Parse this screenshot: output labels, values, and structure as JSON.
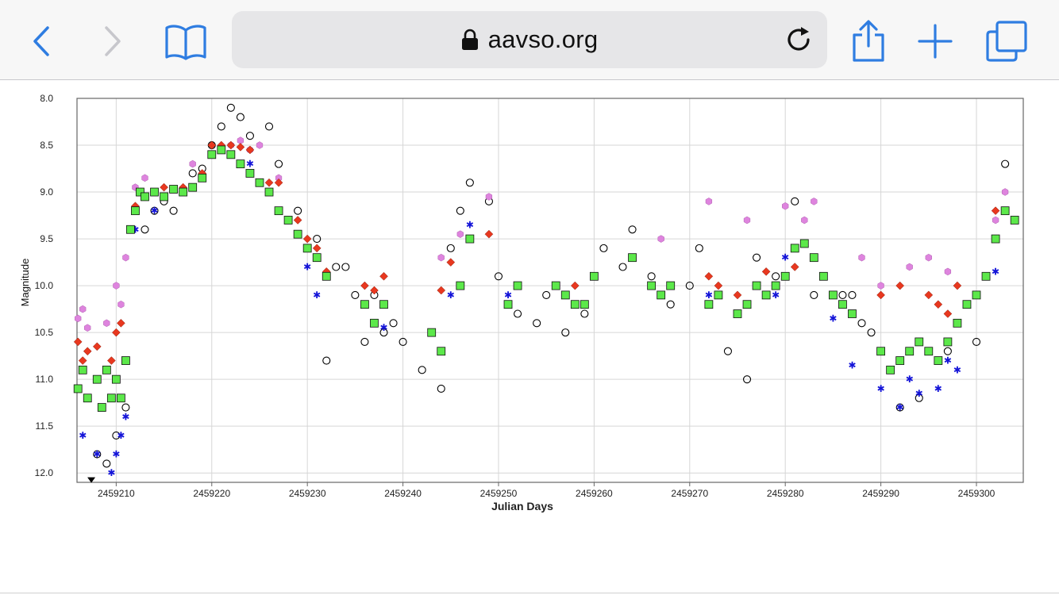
{
  "browser": {
    "url": "aavso.org",
    "back_icon": "chevron-left-icon",
    "forward_icon": "chevron-right-icon",
    "bookmarks_icon": "book-icon",
    "lock_icon": "lock-icon",
    "reload_icon": "reload-icon",
    "share_icon": "share-icon",
    "new_tab_icon": "plus-icon",
    "tabs_icon": "tabs-icon",
    "accent_color": "#2f7de1"
  },
  "chart_data": {
    "type": "scatter",
    "title": "",
    "xlabel": "Julian Days",
    "ylabel": "Magnitude",
    "xlim": [
      2459205.9,
      2459304.9
    ],
    "ylim": [
      8.0,
      12.1
    ],
    "y_inverted": true,
    "grid": true,
    "x_ticks": [
      "2459210",
      "2459220",
      "2459230",
      "2459240",
      "2459250",
      "2459260",
      "2459270",
      "2459280",
      "2459290",
      "2459300"
    ],
    "y_ticks": [
      "8.0",
      "8.5",
      "9.0",
      "9.5",
      "10.0",
      "10.5",
      "11.0",
      "11.5",
      "12.0"
    ],
    "series": [
      {
        "marker": "square",
        "color": "#5ce84a",
        "x": [
          2459206.0,
          2459206.5,
          2459207.0,
          2459208.0,
          2459208.5,
          2459209.0,
          2459209.5,
          2459210.0,
          2459210.5,
          2459211.0,
          2459211.5,
          2459212.0,
          2459212.5,
          2459213.0,
          2459214.0,
          2459215.0,
          2459216.0,
          2459217.0,
          2459218.0,
          2459219.0,
          2459220.0,
          2459221.0,
          2459222.0,
          2459223.0,
          2459224.0,
          2459225.0,
          2459226.0,
          2459227.0,
          2459228.0,
          2459229.0,
          2459230.0,
          2459231.0,
          2459232.0,
          2459236.0,
          2459237.0,
          2459238.0,
          2459243.0,
          2459244.0,
          2459246.0,
          2459247.0,
          2459251.0,
          2459252.0,
          2459256.0,
          2459257.0,
          2459258.0,
          2459259.0,
          2459260.0,
          2459264.0,
          2459266.0,
          2459267.0,
          2459268.0,
          2459272.0,
          2459273.0,
          2459275.0,
          2459276.0,
          2459277.0,
          2459278.0,
          2459279.0,
          2459280.0,
          2459281.0,
          2459282.0,
          2459283.0,
          2459284.0,
          2459285.0,
          2459286.0,
          2459287.0,
          2459290.0,
          2459291.0,
          2459292.0,
          2459293.0,
          2459294.0,
          2459295.0,
          2459296.0,
          2459297.0,
          2459298.0,
          2459299.0,
          2459300.0,
          2459301.0,
          2459302.0,
          2459303.0,
          2459304.0
        ],
        "y": [
          11.1,
          10.9,
          11.2,
          11.0,
          11.3,
          10.9,
          11.2,
          11.0,
          11.2,
          10.8,
          9.4,
          9.2,
          9.0,
          9.05,
          9.0,
          9.05,
          8.97,
          9.0,
          8.95,
          8.85,
          8.6,
          8.55,
          8.6,
          8.7,
          8.8,
          8.9,
          9.0,
          9.2,
          9.3,
          9.45,
          9.6,
          9.7,
          9.9,
          10.2,
          10.4,
          10.2,
          10.5,
          10.7,
          10.0,
          9.5,
          10.2,
          10.0,
          10.0,
          10.1,
          10.2,
          10.2,
          9.9,
          9.7,
          10.0,
          10.1,
          10.0,
          10.2,
          10.1,
          10.3,
          10.2,
          10.0,
          10.1,
          10.0,
          9.9,
          9.6,
          9.55,
          9.7,
          9.9,
          10.1,
          10.2,
          10.3,
          10.7,
          10.9,
          10.8,
          10.7,
          10.6,
          10.7,
          10.8,
          10.6,
          10.4,
          10.2,
          10.1,
          9.9,
          9.5,
          9.2,
          9.3
        ]
      },
      {
        "marker": "circle-open",
        "color": "#000000",
        "x": [
          2459208.0,
          2459209.0,
          2459210.0,
          2459211.0,
          2459213.0,
          2459214.0,
          2459215.0,
          2459216.0,
          2459217.0,
          2459218.0,
          2459219.0,
          2459220.0,
          2459221.0,
          2459222.0,
          2459223.0,
          2459224.0,
          2459225.0,
          2459226.0,
          2459227.0,
          2459228.0,
          2459229.0,
          2459230.0,
          2459231.0,
          2459232.0,
          2459233.0,
          2459234.0,
          2459235.0,
          2459236.0,
          2459237.0,
          2459238.0,
          2459239.0,
          2459240.0,
          2459242.0,
          2459244.0,
          2459245.0,
          2459246.0,
          2459247.0,
          2459249.0,
          2459250.0,
          2459252.0,
          2459254.0,
          2459255.0,
          2459257.0,
          2459259.0,
          2459261.0,
          2459263.0,
          2459264.0,
          2459266.0,
          2459268.0,
          2459270.0,
          2459271.0,
          2459274.0,
          2459276.0,
          2459277.0,
          2459279.0,
          2459281.0,
          2459283.0,
          2459286.0,
          2459287.0,
          2459288.0,
          2459289.0,
          2459292.0,
          2459294.0,
          2459297.0,
          2459300.0,
          2459303.0
        ],
        "y": [
          11.8,
          11.9,
          11.6,
          11.3,
          9.4,
          9.2,
          9.1,
          9.2,
          9.0,
          8.8,
          8.75,
          8.5,
          8.3,
          8.1,
          8.2,
          8.4,
          8.9,
          8.3,
          8.7,
          9.3,
          9.2,
          9.6,
          9.5,
          10.8,
          9.8,
          9.8,
          10.1,
          10.6,
          10.1,
          10.5,
          10.4,
          10.6,
          10.9,
          11.1,
          9.6,
          9.2,
          8.9,
          9.1,
          9.9,
          10.3,
          10.4,
          10.1,
          10.5,
          10.3,
          9.6,
          9.8,
          9.4,
          9.9,
          10.2,
          10.0,
          9.6,
          10.7,
          11.0,
          9.7,
          9.9,
          9.1,
          10.1,
          10.1,
          10.1,
          10.4,
          10.5,
          11.3,
          11.2,
          10.7,
          10.6,
          8.7
        ],
        "x2": []
      },
      {
        "marker": "diamond",
        "color": "#e8381f",
        "x": [
          2459206.0,
          2459206.5,
          2459207.0,
          2459208.0,
          2459209.0,
          2459209.5,
          2459210.0,
          2459210.5,
          2459212.0,
          2459215.0,
          2459216.0,
          2459217.0,
          2459219.0,
          2459220.0,
          2459221.0,
          2459222.0,
          2459223.0,
          2459224.0,
          2459226.0,
          2459227.0,
          2459228.0,
          2459229.0,
          2459230.0,
          2459231.0,
          2459232.0,
          2459236.0,
          2459237.0,
          2459238.0,
          2459244.0,
          2459245.0,
          2459249.0,
          2459258.0,
          2459272.0,
          2459273.0,
          2459275.0,
          2459276.0,
          2459278.0,
          2459281.0,
          2459290.0,
          2459292.0,
          2459295.0,
          2459296.0,
          2459297.0,
          2459298.0,
          2459302.0
        ],
        "y": [
          10.6,
          10.8,
          10.7,
          10.65,
          10.9,
          10.8,
          10.5,
          10.4,
          9.15,
          8.95,
          8.97,
          8.95,
          8.8,
          8.5,
          8.5,
          8.5,
          8.52,
          8.55,
          8.9,
          8.9,
          9.3,
          9.3,
          9.5,
          9.6,
          9.85,
          10.0,
          10.05,
          9.9,
          10.05,
          9.75,
          9.45,
          10.0,
          9.9,
          10.0,
          10.1,
          10.2,
          9.85,
          9.8,
          10.1,
          10.0,
          10.1,
          10.2,
          10.3,
          10.0,
          9.2
        ]
      },
      {
        "marker": "hexagon",
        "color": "#de84de",
        "x": [
          2459206.0,
          2459206.5,
          2459207.0,
          2459209.0,
          2459210.0,
          2459210.5,
          2459211.0,
          2459212.0,
          2459213.0,
          2459218.0,
          2459222.0,
          2459223.0,
          2459224.0,
          2459225.0,
          2459227.0,
          2459244.0,
          2459246.0,
          2459249.0,
          2459267.0,
          2459272.0,
          2459276.0,
          2459280.0,
          2459282.0,
          2459283.0,
          2459288.0,
          2459290.0,
          2459293.0,
          2459295.0,
          2459297.0,
          2459302.0,
          2459303.0
        ],
        "y": [
          10.35,
          10.25,
          10.45,
          10.4,
          10.0,
          10.2,
          9.7,
          8.95,
          8.85,
          8.7,
          8.5,
          8.45,
          8.55,
          8.5,
          8.85,
          9.7,
          9.45,
          9.05,
          9.5,
          9.1,
          9.3,
          9.15,
          9.3,
          9.1,
          9.7,
          10.0,
          9.8,
          9.7,
          9.85,
          9.3,
          9.0
        ]
      },
      {
        "marker": "star",
        "color": "#1414d8",
        "x": [
          2459206.5,
          2459208.0,
          2459209.5,
          2459210.0,
          2459210.5,
          2459211.0,
          2459212.0,
          2459214.0,
          2459224.0,
          2459230.0,
          2459231.0,
          2459238.0,
          2459244.0,
          2459245.0,
          2459247.0,
          2459251.0,
          2459272.0,
          2459279.0,
          2459280.0,
          2459285.0,
          2459287.0,
          2459290.0,
          2459292.0,
          2459293.0,
          2459294.0,
          2459296.0,
          2459297.0,
          2459298.0,
          2459302.0
        ],
        "y": [
          11.6,
          11.8,
          12.0,
          11.8,
          11.6,
          11.4,
          9.4,
          9.2,
          8.7,
          9.8,
          10.1,
          10.45,
          10.7,
          10.1,
          9.35,
          10.1,
          10.1,
          10.1,
          9.7,
          10.35,
          10.85,
          11.1,
          11.3,
          11.0,
          11.15,
          11.1,
          10.8,
          10.9,
          9.85
        ]
      }
    ],
    "upper_limit_marker": {
      "x": 2459207.4,
      "y": 12.08,
      "marker": "triangle-down",
      "color": "#000000"
    }
  }
}
